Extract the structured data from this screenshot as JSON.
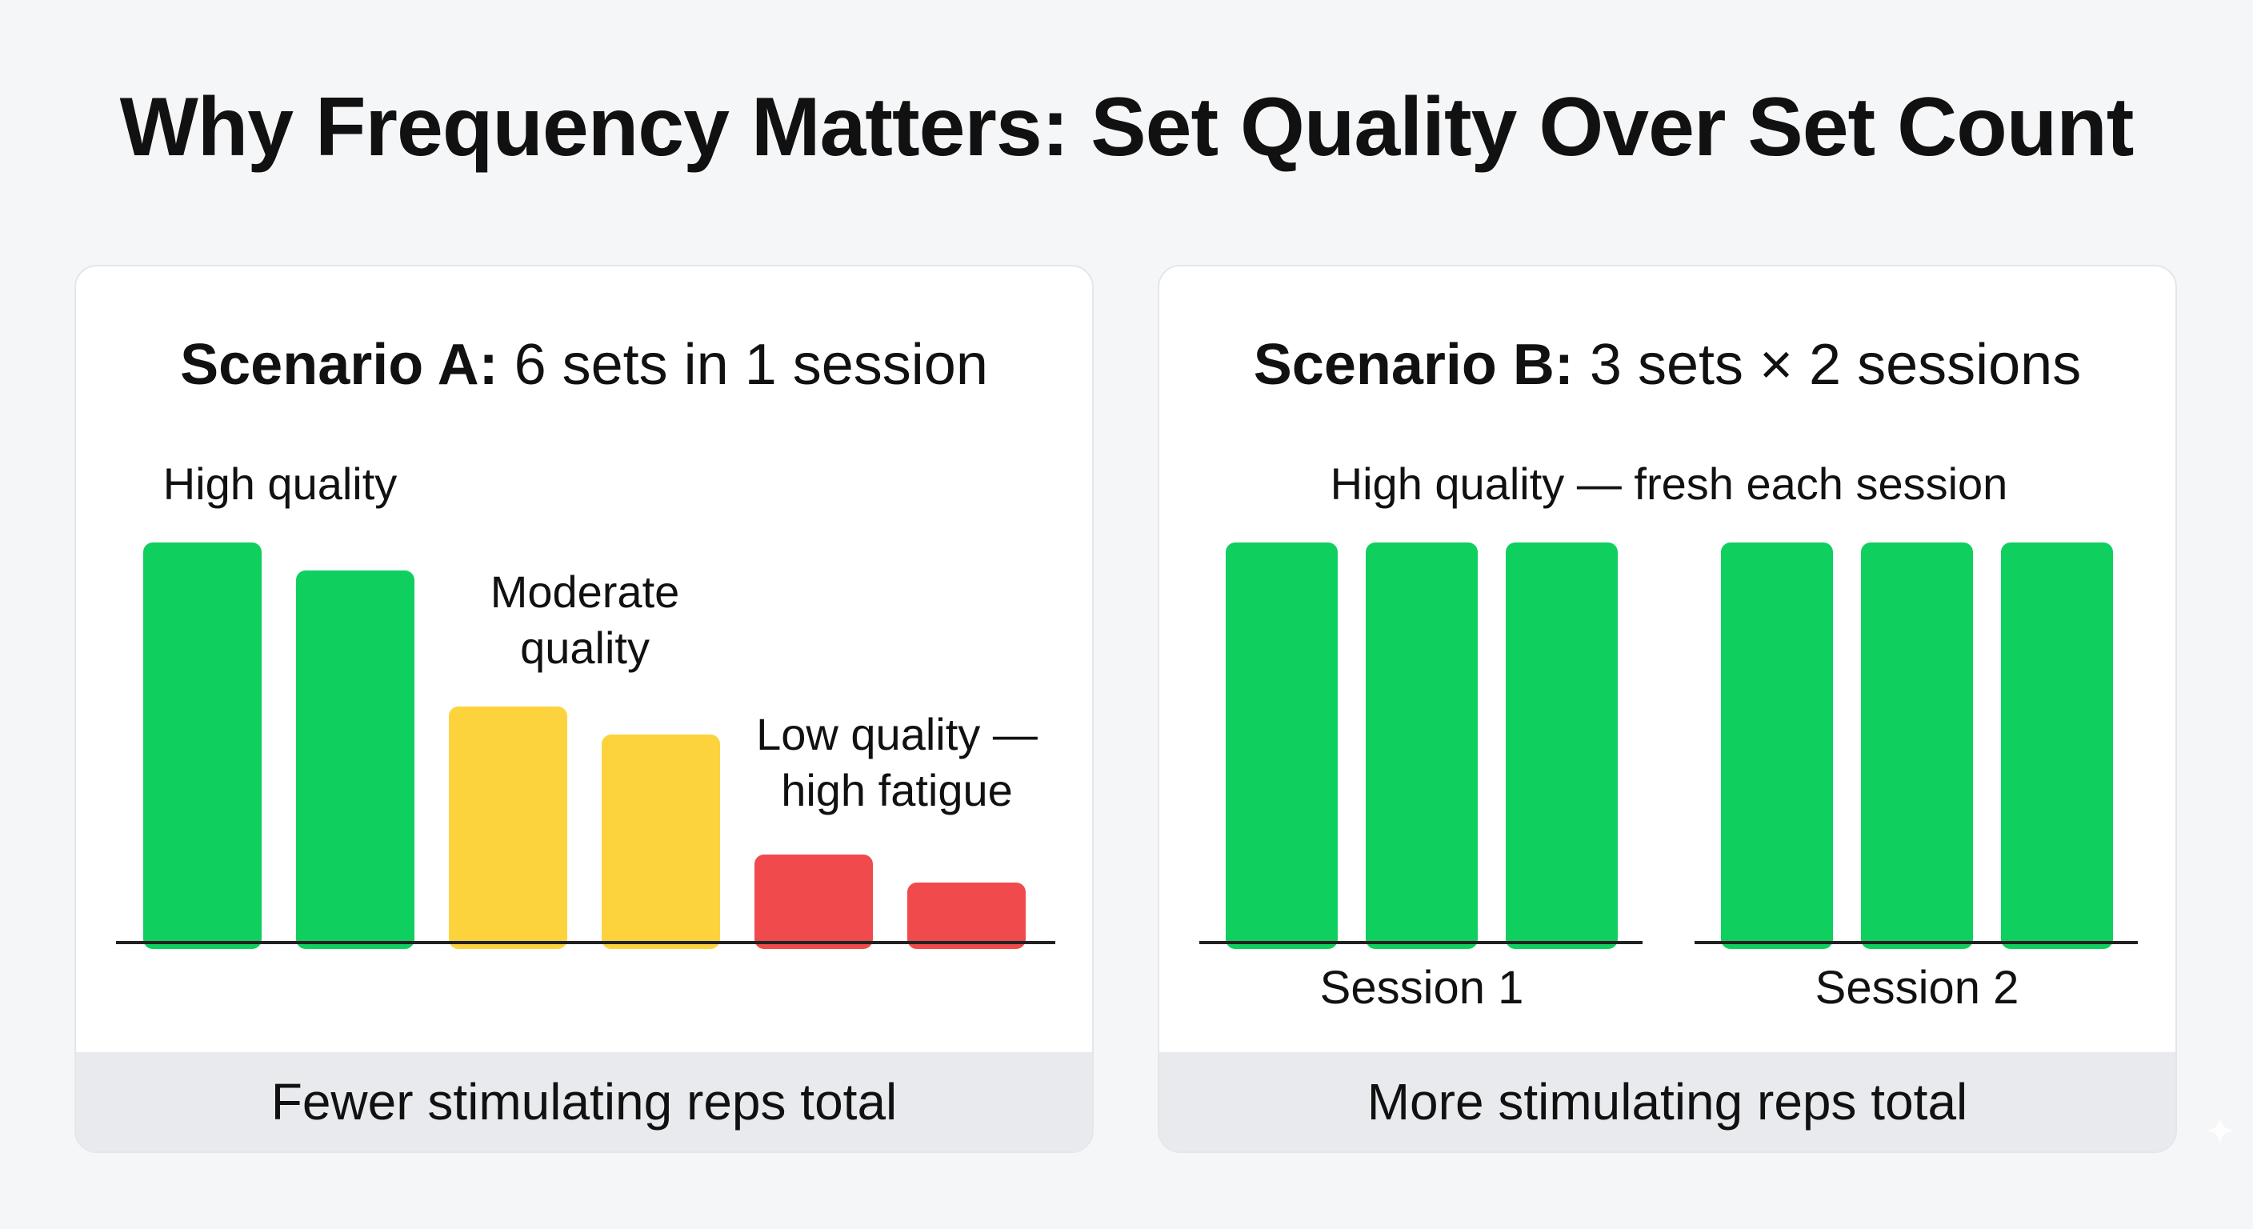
{
  "title": "Why Frequency Matters: Set Quality Over Set Count",
  "colors": {
    "high": "#0fcf5f",
    "moderate": "#fcd33c",
    "low": "#f04a4c",
    "axis": "#222222"
  },
  "chart_data": [
    {
      "type": "bar",
      "title_lead": "Scenario A:",
      "title_rest": " 6 sets in 1 session",
      "categories": [
        "",
        "",
        "",
        "",
        "",
        ""
      ],
      "values": [
        100,
        93,
        59,
        52,
        22,
        15
      ],
      "quality": [
        "high",
        "high",
        "moderate",
        "moderate",
        "low",
        "low"
      ],
      "ylim": [
        0,
        100
      ],
      "annotations": [
        {
          "lines": [
            "High quality"
          ]
        },
        {
          "lines": [
            "Moderate",
            "quality"
          ]
        },
        {
          "lines": [
            "Low quality —",
            "high fatigue"
          ]
        }
      ],
      "footer": "Fewer stimulating reps total"
    },
    {
      "type": "bar",
      "title_lead": "Scenario B:",
      "title_rest": " 3 sets × 2 sessions",
      "groups": [
        {
          "label": "Session 1",
          "values": [
            100,
            100,
            100
          ]
        },
        {
          "label": "Session 2",
          "values": [
            100,
            100,
            100
          ]
        }
      ],
      "quality": "high",
      "ylim": [
        0,
        100
      ],
      "annotations": [
        {
          "lines": [
            "High quality — fresh each session"
          ]
        }
      ],
      "footer": "More stimulating reps total"
    }
  ]
}
